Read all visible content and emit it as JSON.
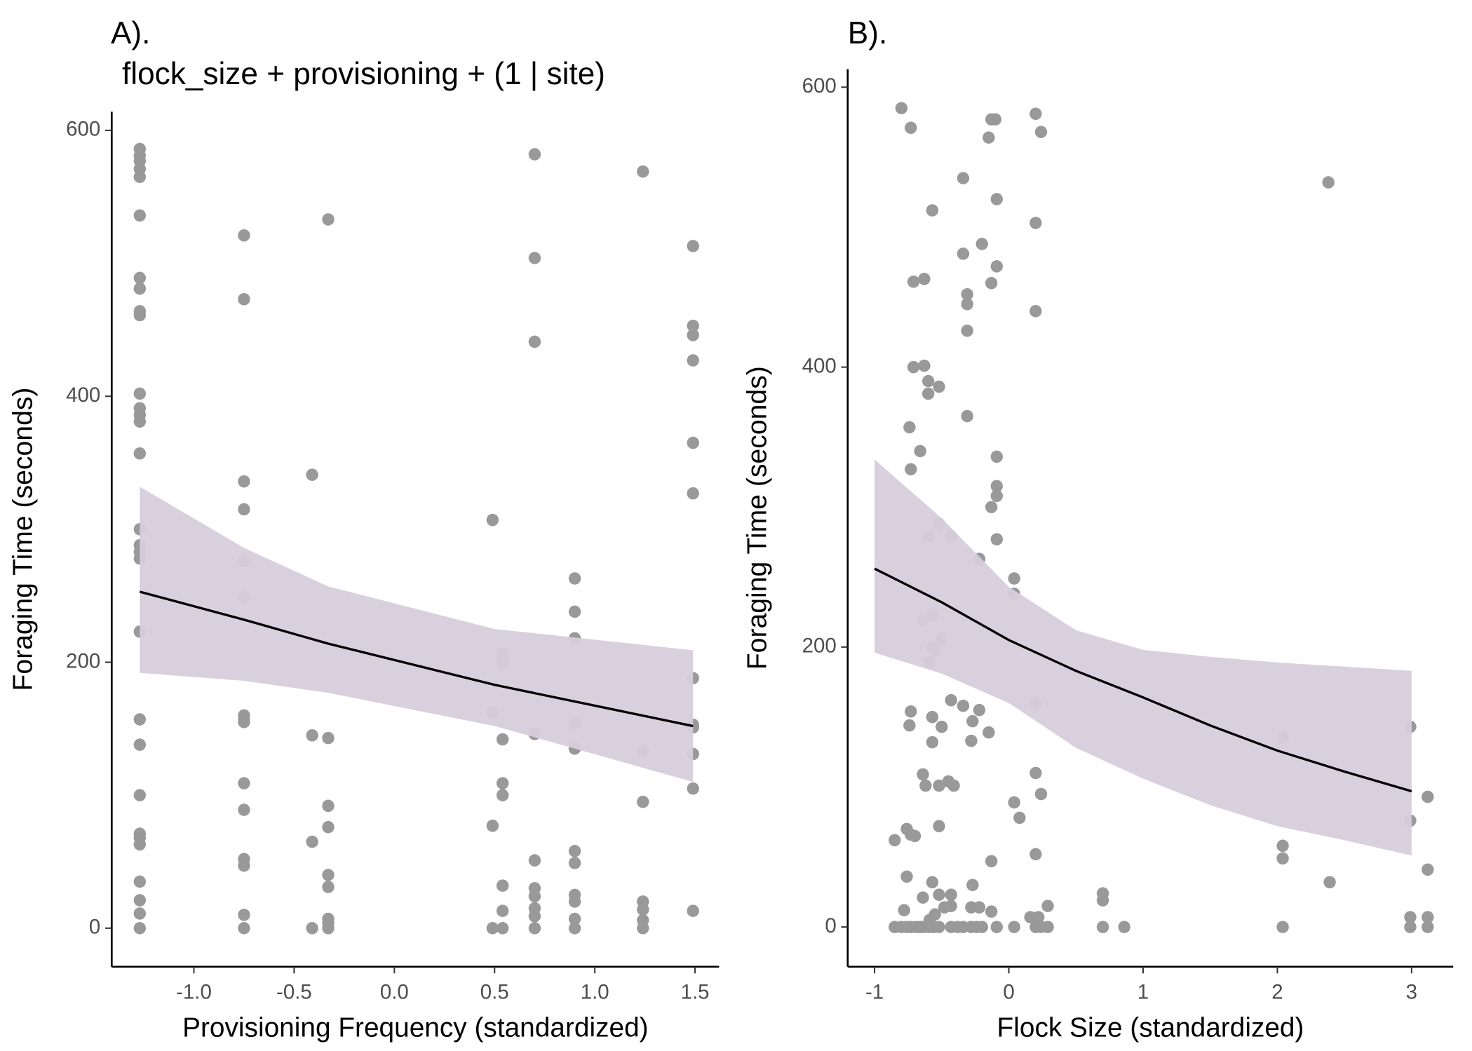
{
  "chart_data": [
    {
      "type": "scatter",
      "title": "A).",
      "subtitle": "flock_size + provisioning + (1 | site)",
      "xlabel": "Provisioning Frequency (standardized)",
      "ylabel": "Foraging Time (seconds)",
      "xlim": [
        -1.41,
        1.62
      ],
      "ylim": [
        -29,
        614
      ],
      "xticks": [
        {
          "value": -1,
          "label": "-1.0"
        },
        -0.5,
        {
          "value": 0,
          "label": "0.0"
        },
        0.5,
        {
          "value": 1,
          "label": "1.0"
        },
        1.5
      ],
      "yticks": [
        0,
        200,
        400,
        600
      ],
      "points": {
        "color": "#999999",
        "x": [
          -1.27,
          -1.27,
          -1.27,
          -1.27,
          -1.27,
          -1.27,
          -1.27,
          -1.27,
          -1.27,
          -1.27,
          -1.27,
          -1.27,
          -1.27,
          -1.27,
          -1.27,
          -1.27,
          -1.27,
          -1.27,
          -1.27,
          -1.27,
          -1.27,
          -1.27,
          -1.27,
          -1.27,
          -1.27,
          -1.27,
          -1.27,
          -1.27,
          -1.27,
          -1.27,
          -0.75,
          -0.75,
          -0.75,
          -0.75,
          -0.75,
          -0.75,
          -0.75,
          -0.75,
          -0.75,
          -0.75,
          -0.75,
          -0.75,
          -0.75,
          -0.75,
          -0.75,
          -0.41,
          -0.41,
          -0.41,
          -0.41,
          -0.33,
          -0.33,
          -0.33,
          -0.33,
          -0.33,
          -0.33,
          -0.33,
          -0.33,
          -0.33,
          0.49,
          0.49,
          0.49,
          0.49,
          0.54,
          0.54,
          0.54,
          0.54,
          0.54,
          0.54,
          0.54,
          0.54,
          0.54,
          0.7,
          0.7,
          0.7,
          0.7,
          0.7,
          0.7,
          0.7,
          0.7,
          0.7,
          0.7,
          0.9,
          0.9,
          0.9,
          0.9,
          0.9,
          0.9,
          0.9,
          0.9,
          0.9,
          0.9,
          0.9,
          1.24,
          1.24,
          1.24,
          1.24,
          1.24,
          1.24,
          1.24,
          1.49,
          1.49,
          1.49,
          1.49,
          1.49,
          1.49,
          1.49,
          1.49,
          1.49,
          1.49,
          1.49,
          1.49
        ],
        "y": [
          586,
          581,
          577,
          571,
          565,
          536,
          489,
          481,
          464,
          461,
          402,
          391,
          386,
          381,
          357,
          300,
          288,
          283,
          278,
          223,
          157,
          138,
          100,
          71,
          68,
          63,
          35,
          21,
          11,
          0,
          521,
          473,
          336,
          315,
          276,
          249,
          160,
          157,
          155,
          109,
          89,
          52,
          47,
          10,
          0,
          341,
          145,
          65,
          0,
          533,
          143,
          92,
          76,
          40,
          31,
          7,
          4,
          0,
          307,
          162,
          77,
          0,
          206,
          202,
          199,
          142,
          109,
          100,
          32,
          13,
          0,
          582,
          504,
          441,
          146,
          51,
          30,
          24,
          15,
          9,
          0,
          263,
          238,
          218,
          154,
          135,
          58,
          49,
          25,
          20,
          7,
          0,
          569,
          133,
          95,
          20,
          14,
          6,
          0,
          513,
          453,
          446,
          427,
          365,
          327,
          188,
          153,
          151,
          131,
          105,
          13
        ]
      },
      "fit": {
        "color": "#000000",
        "band_color": "#d7cddc",
        "x": [
          -1.27,
          -0.75,
          -0.33,
          0.5,
          1.49
        ],
        "values": [
          253,
          232,
          214,
          183,
          152
        ],
        "lower": [
          192,
          186,
          177,
          152,
          110
        ],
        "upper": [
          332,
          286,
          257,
          225,
          209
        ]
      }
    },
    {
      "type": "scatter",
      "title": "B).",
      "xlabel": "Flock Size (standardized)",
      "ylabel": "Foraging Time (seconds)",
      "xlim": [
        -1.2,
        3.31
      ],
      "ylim": [
        -28.4,
        612.9
      ],
      "xticks": [
        -1,
        0,
        1,
        2,
        3
      ],
      "yticks": [
        0,
        200,
        400,
        600
      ],
      "points": {
        "color": "#999999",
        "x": [
          -0.8,
          -0.73,
          -0.13,
          -0.1,
          -0.15,
          0.2,
          0.24,
          -0.34,
          -0.57,
          -0.09,
          0.2,
          -0.2,
          -0.34,
          -0.63,
          -0.71,
          -0.09,
          -0.13,
          -0.31,
          -0.31,
          0.2,
          -0.31,
          -0.71,
          -0.63,
          -0.6,
          -0.6,
          -0.52,
          -0.31,
          -0.74,
          -0.66,
          -0.73,
          -0.09,
          -0.09,
          -0.09,
          -0.13,
          -0.52,
          -0.43,
          -0.6,
          -0.09,
          -0.22,
          0.04,
          0.04,
          -0.57,
          -0.64,
          -0.5,
          -0.57,
          -0.59,
          -0.55,
          0.2,
          -0.43,
          -0.34,
          -0.22,
          -0.73,
          -0.57,
          -0.5,
          -0.74,
          -0.15,
          -0.27,
          -0.28,
          -0.57,
          2.04,
          2.99,
          -0.64,
          -0.45,
          -0.41,
          -0.62,
          -0.52,
          0.2,
          0.24,
          0.04,
          0.08,
          3.12,
          2.99,
          -0.52,
          -0.85,
          -0.76,
          -0.73,
          -0.7,
          2.04,
          2.04,
          -0.13,
          0.2,
          3.12,
          -0.76,
          -0.57,
          2.39,
          -0.27,
          -0.64,
          -0.52,
          -0.43,
          0.7,
          0.7,
          0.29,
          -0.28,
          -0.22,
          -0.43,
          -0.48,
          -0.78,
          -0.13,
          -0.55,
          0.22,
          0.16,
          2.99,
          3.12,
          -0.59,
          2.38,
          -0.85,
          -0.8,
          -0.76,
          -0.73,
          -0.69,
          -0.66,
          -0.63,
          -0.59,
          -0.56,
          -0.52,
          -0.43,
          -0.38,
          -0.34,
          -0.28,
          -0.24,
          -0.2,
          -0.09,
          0.04,
          0.2,
          0.24,
          0.29,
          0.7,
          0.86,
          2.04,
          2.99,
          3.12
        ],
        "y": [
          585,
          571,
          577,
          577,
          564,
          581,
          568,
          535,
          512,
          520,
          503,
          488,
          481,
          463,
          461,
          472,
          460,
          452,
          445,
          440,
          426,
          400,
          401,
          390,
          381,
          386,
          365,
          357,
          340,
          327,
          336,
          315,
          308,
          300,
          288,
          279,
          279,
          277,
          263,
          249,
          238,
          223,
          219,
          206,
          200,
          189,
          198,
          160,
          162,
          158,
          155,
          154,
          150,
          143,
          144,
          139,
          147,
          133,
          132,
          135,
          143,
          109,
          104,
          101,
          101,
          101,
          110,
          95,
          89,
          78,
          93,
          76,
          72,
          62,
          70,
          66,
          65,
          58,
          49,
          47,
          52,
          41,
          36,
          32,
          32,
          30,
          21,
          23,
          23,
          24,
          19,
          15,
          14,
          14,
          15,
          14,
          12,
          11,
          9,
          7,
          7,
          7,
          7,
          5,
          532,
          0,
          0,
          0,
          0,
          0,
          0,
          0,
          0,
          0,
          0,
          0,
          0,
          0,
          0,
          0,
          0,
          0,
          0,
          0,
          0,
          0,
          0,
          0,
          0,
          0,
          0
        ]
      },
      "fit": {
        "color": "#000000",
        "band_color": "#d7cddc",
        "x": [
          -1,
          -0.5,
          0,
          0.5,
          1,
          1.5,
          2,
          2.5,
          3
        ],
        "values": [
          256,
          232,
          205,
          183,
          164,
          144,
          126,
          111,
          97
        ],
        "lower": [
          196,
          181,
          160,
          128,
          106,
          87,
          72,
          62,
          51
        ],
        "upper": [
          334,
          292,
          243,
          212,
          198,
          193,
          189,
          186,
          183
        ]
      }
    }
  ]
}
